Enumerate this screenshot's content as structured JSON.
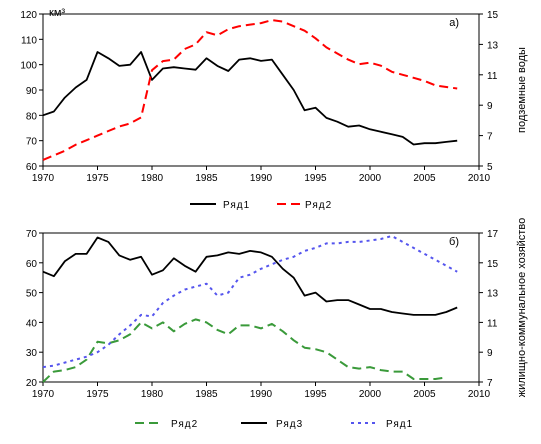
{
  "chart_data": [
    {
      "type": "line",
      "panel_label": "а)",
      "unit_label": "км³",
      "y2label": "подземные воды",
      "xlim": [
        1970,
        2010
      ],
      "ylim": [
        60,
        120
      ],
      "y2lim": [
        5,
        15
      ],
      "xticks": [
        "1970",
        "1975",
        "1980",
        "1985",
        "1990",
        "1995",
        "2000",
        "2005",
        "2010"
      ],
      "yticks": [
        "60",
        "70",
        "80",
        "90",
        "100",
        "110",
        "120"
      ],
      "y2ticks": [
        "5",
        "7",
        "9",
        "11",
        "13",
        "15"
      ],
      "legend": {
        "placement": "bottom",
        "entries": [
          "Ряд1",
          "Ряд2"
        ]
      },
      "series": [
        {
          "name": "Ряд1",
          "axis": "left",
          "color": "#000000",
          "dash": "solid",
          "x": [
            1970,
            1971,
            1972,
            1973,
            1974,
            1975,
            1976,
            1977,
            1978,
            1979,
            1980,
            1981,
            1982,
            1983,
            1984,
            1985,
            1986,
            1987,
            1988,
            1989,
            1990,
            1991,
            1992,
            1993,
            1994,
            1995,
            1996,
            1997,
            1998,
            1999,
            2000,
            2001,
            2002,
            2003,
            2004,
            2005,
            2006,
            2007,
            2008
          ],
          "values": [
            80,
            81.5,
            87,
            91,
            94,
            105,
            102.5,
            99.5,
            100,
            105,
            94,
            98.5,
            99,
            98.5,
            98,
            102.5,
            99.5,
            97.5,
            102,
            102.5,
            101.5,
            102,
            96,
            90,
            82,
            83,
            79,
            77.5,
            75.5,
            76,
            74.5,
            73.5,
            72.5,
            71.5,
            68.5,
            69,
            69,
            69.5,
            70
          ]
        },
        {
          "name": "Ряд2",
          "axis": "right",
          "color": "#ff0000",
          "dash": "dash",
          "x": [
            1970,
            1971,
            1972,
            1973,
            1974,
            1975,
            1976,
            1977,
            1978,
            1979,
            1980,
            1981,
            1982,
            1983,
            1984,
            1985,
            1986,
            1987,
            1988,
            1989,
            1990,
            1991,
            1992,
            1993,
            1994,
            1995,
            1996,
            1997,
            1998,
            1999,
            2000,
            2001,
            2002,
            2003,
            2004,
            2005,
            2006,
            2007,
            2008
          ],
          "values": [
            5.4,
            5.7,
            6.0,
            6.4,
            6.7,
            7.0,
            7.3,
            7.6,
            7.8,
            8.2,
            11.3,
            11.9,
            12.0,
            12.7,
            13.0,
            13.8,
            13.6,
            14.0,
            14.2,
            14.3,
            14.4,
            14.6,
            14.5,
            14.2,
            13.9,
            13.4,
            12.8,
            12.4,
            12.0,
            11.7,
            11.8,
            11.6,
            11.2,
            11.0,
            10.8,
            10.6,
            10.3,
            10.2,
            10.1
          ]
        }
      ]
    },
    {
      "type": "line",
      "panel_label": "б)",
      "y2label": "жилищно-коммунальное хозяйство",
      "xlim": [
        1970,
        2010
      ],
      "ylim": [
        20,
        70
      ],
      "y2lim": [
        7,
        17
      ],
      "xticks": [
        "1970",
        "1975",
        "1980",
        "1985",
        "1990",
        "1995",
        "2000",
        "2005",
        "2010"
      ],
      "yticks": [
        "20",
        "30",
        "40",
        "50",
        "60",
        "70"
      ],
      "y2ticks": [
        "7",
        "9",
        "11",
        "13",
        "15",
        "17"
      ],
      "legend": {
        "placement": "bottom",
        "entries": [
          "Ряд2",
          "Ряд3",
          "Ряд1"
        ]
      },
      "series": [
        {
          "name": "Ряд2",
          "axis": "left",
          "color": "#3a9a3a",
          "dash": "dash",
          "x": [
            1970,
            1971,
            1972,
            1973,
            1974,
            1975,
            1976,
            1977,
            1978,
            1979,
            1980,
            1981,
            1982,
            1983,
            1984,
            1985,
            1986,
            1987,
            1988,
            1989,
            1990,
            1991,
            1992,
            1993,
            1994,
            1995,
            1996,
            1997,
            1998,
            1999,
            2000,
            2001,
            2002,
            2003,
            2004,
            2005,
            2006,
            2007,
            2008
          ],
          "values": [
            20,
            23.5,
            24,
            25,
            27.5,
            33.5,
            33,
            34,
            36,
            40,
            38,
            40,
            37,
            39.5,
            41,
            40,
            37.5,
            36,
            39,
            39,
            38,
            39.5,
            37,
            34,
            31.5,
            31,
            30,
            27.5,
            25,
            24.5,
            25,
            24,
            23.5,
            23.5,
            21,
            21,
            21,
            21.5,
            null
          ]
        },
        {
          "name": "Ряд3",
          "axis": "left",
          "color": "#000000",
          "dash": "solid",
          "x": [
            1970,
            1971,
            1972,
            1973,
            1974,
            1975,
            1976,
            1977,
            1978,
            1979,
            1980,
            1981,
            1982,
            1983,
            1984,
            1985,
            1986,
            1987,
            1988,
            1989,
            1990,
            1991,
            1992,
            1993,
            1994,
            1995,
            1996,
            1997,
            1998,
            1999,
            2000,
            2001,
            2002,
            2003,
            2004,
            2005,
            2006,
            2007,
            2008
          ],
          "values": [
            57,
            55.5,
            60.5,
            63,
            63,
            68.5,
            67,
            62.5,
            61,
            62,
            56,
            57.5,
            61.5,
            59,
            57,
            62,
            62.5,
            63.5,
            63,
            64,
            63.5,
            62,
            58,
            55,
            49,
            50,
            47,
            47.5,
            47.5,
            46,
            44.5,
            44.5,
            43.5,
            43,
            42.5,
            42.5,
            42.5,
            43.5,
            45
          ]
        },
        {
          "name": "Ряд1",
          "axis": "right",
          "color": "#5555ee",
          "dash": "dot",
          "x": [
            1970,
            1971,
            1972,
            1973,
            1974,
            1975,
            1976,
            1977,
            1978,
            1979,
            1980,
            1981,
            1982,
            1983,
            1984,
            1985,
            1986,
            1987,
            1988,
            1989,
            1990,
            1991,
            1992,
            1993,
            1994,
            1995,
            1996,
            1997,
            1998,
            1999,
            2000,
            2001,
            2002,
            2003,
            2004,
            2005,
            2006,
            2007,
            2008
          ],
          "values": [
            8.0,
            8.1,
            8.3,
            8.5,
            8.7,
            9.0,
            9.5,
            10.2,
            10.8,
            11.5,
            11.4,
            12.3,
            12.8,
            13.2,
            13.4,
            13.6,
            12.8,
            13.0,
            14.0,
            14.2,
            14.6,
            14.9,
            15.2,
            15.4,
            15.8,
            16.0,
            16.3,
            16.3,
            16.4,
            16.4,
            16.5,
            16.6,
            16.8,
            16.4,
            16.0,
            15.6,
            15.2,
            14.8,
            14.4
          ]
        }
      ]
    }
  ]
}
